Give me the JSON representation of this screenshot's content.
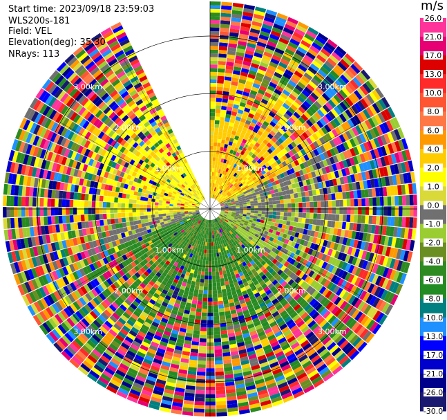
{
  "header": {
    "start_time": "Start time: 2023/09/18 23:59:03",
    "instrument": "WLS200s-181",
    "field": "Field: VEL",
    "elevation": "Elevation(deg): 35.30",
    "nrays": "NRays: 113"
  },
  "colorbar": {
    "unit": "m/s",
    "labels": [
      "26.0",
      "21.0",
      "17.0",
      "13.0",
      "10.0",
      "8.0",
      "6.0",
      "4.0",
      "2.0",
      "1.0",
      "0.0",
      "-1.0",
      "-2.0",
      "-4.0",
      "-6.0",
      "-8.0",
      "-10.0",
      "-13.0",
      "-17.0",
      "-21.0",
      "-26.0",
      "-30.0"
    ],
    "colors": [
      "#ff3399",
      "#e60073",
      "#dd0000",
      "#ff2a2a",
      "#ff5533",
      "#ff7744",
      "#ff9900",
      "#ffcc00",
      "#ffff00",
      "#d9d93a",
      "#707070",
      "#9acd32",
      "#6b8e23",
      "#2e8b22",
      "#228b22",
      "#008080",
      "#1e90ff",
      "#0000ff",
      "#0000cd",
      "#00008b",
      "#191970"
    ]
  },
  "chart_data": {
    "type": "ppi",
    "field": "VEL",
    "units": "m/s",
    "elevation_deg": 35.3,
    "nrays": 113,
    "range_rings_km": [
      1.0,
      2.0,
      3.0
    ],
    "ring_labels": [
      "1.00km",
      "2.00km",
      "3.00km"
    ],
    "max_range_km": 3.6,
    "gap_azimuth_deg": [
      334,
      360
    ],
    "dominant_pattern": [
      {
        "region": "north-west inner",
        "value_range_ms": [
          2,
          4
        ],
        "color": "yellow"
      },
      {
        "region": "north-east inner",
        "value_range_ms": [
          4,
          8
        ],
        "color": "orange"
      },
      {
        "region": "east-west band",
        "value_range_ms": [
          -1,
          1
        ],
        "color": "gray"
      },
      {
        "region": "south inner",
        "value_range_ms": [
          -6,
          -2
        ],
        "color": "green"
      },
      {
        "region": "outer ranges",
        "value_range_ms": [
          -30,
          26
        ],
        "color": "noise"
      }
    ]
  }
}
